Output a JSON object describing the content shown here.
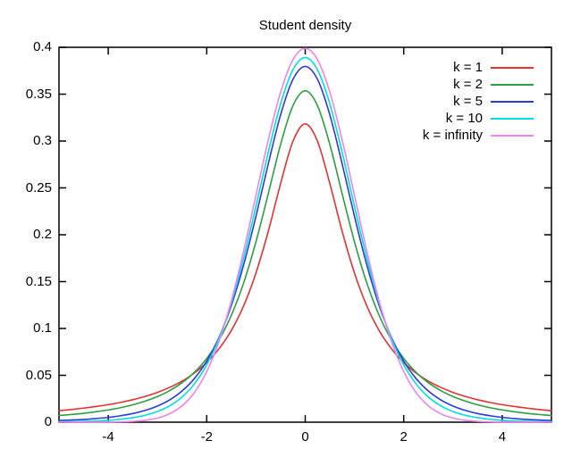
{
  "chart_data": {
    "type": "line",
    "title": "Student density",
    "xlabel": "",
    "ylabel": "",
    "xlim": [
      -5,
      5
    ],
    "ylim": [
      0,
      0.4
    ],
    "grid": false,
    "legend_position": "top-right-inside",
    "axis_color": "#000000",
    "background": "#ffffff",
    "x": [
      -5,
      -4.75,
      -4.5,
      -4.25,
      -4,
      -3.75,
      -3.5,
      -3.25,
      -3,
      -2.75,
      -2.5,
      -2.25,
      -2,
      -1.75,
      -1.5,
      -1.25,
      -1,
      -0.75,
      -0.5,
      -0.25,
      0,
      0.25,
      0.5,
      0.75,
      1,
      1.25,
      1.5,
      1.75,
      2,
      2.25,
      2.5,
      2.75,
      3,
      3.25,
      3.5,
      3.75,
      4,
      4.25,
      4.5,
      4.75,
      5
    ],
    "series": [
      {
        "name": "k = 1",
        "color": "#e03434",
        "values": [
          0.0122,
          0.0135,
          0.015,
          0.0167,
          0.0187,
          0.0211,
          0.024,
          0.0275,
          0.0318,
          0.0372,
          0.0439,
          0.0525,
          0.0637,
          0.0784,
          0.0979,
          0.1242,
          0.1592,
          0.2037,
          0.2546,
          0.2996,
          0.3183,
          0.2996,
          0.2546,
          0.2037,
          0.1592,
          0.1242,
          0.0979,
          0.0784,
          0.0637,
          0.0525,
          0.0439,
          0.0372,
          0.0318,
          0.0275,
          0.024,
          0.0211,
          0.0187,
          0.0167,
          0.015,
          0.0135,
          0.0122
        ]
      },
      {
        "name": "k = 2",
        "color": "#2e9e44",
        "values": [
          0.0071,
          0.0082,
          0.0095,
          0.0111,
          0.0131,
          0.0155,
          0.0186,
          0.0225,
          0.0274,
          0.0338,
          0.0422,
          0.0533,
          0.068,
          0.0878,
          0.1141,
          0.1487,
          0.1925,
          0.2438,
          0.2963,
          0.3376,
          0.3536,
          0.3376,
          0.2963,
          0.2438,
          0.1925,
          0.1487,
          0.1141,
          0.0878,
          0.068,
          0.0533,
          0.0422,
          0.0338,
          0.0274,
          0.0225,
          0.0186,
          0.0155,
          0.0131,
          0.0111,
          0.0095,
          0.0082,
          0.0071
        ]
      },
      {
        "name": "k = 5",
        "color": "#2d3bd6",
        "values": [
          0.0018,
          0.0023,
          0.0029,
          0.0039,
          0.0051,
          0.0069,
          0.0092,
          0.0126,
          0.0173,
          0.0239,
          0.0333,
          0.0466,
          0.0651,
          0.0905,
          0.1245,
          0.1679,
          0.2197,
          0.2757,
          0.3279,
          0.3657,
          0.3796,
          0.3657,
          0.3279,
          0.2757,
          0.2197,
          0.1679,
          0.1245,
          0.0905,
          0.0651,
          0.0466,
          0.0333,
          0.0239,
          0.0173,
          0.0126,
          0.0092,
          0.0069,
          0.0051,
          0.0039,
          0.0029,
          0.0023,
          0.0018
        ]
      },
      {
        "name": "k = 10",
        "color": "#00dede",
        "values": [
          0.0004,
          0.0006,
          0.0009,
          0.0013,
          0.002,
          0.0031,
          0.0048,
          0.0074,
          0.0114,
          0.0176,
          0.0269,
          0.0409,
          0.0612,
          0.0895,
          0.1274,
          0.1751,
          0.2304,
          0.288,
          0.3397,
          0.376,
          0.3891,
          0.376,
          0.3397,
          0.288,
          0.2304,
          0.1751,
          0.1274,
          0.0895,
          0.0612,
          0.0409,
          0.0269,
          0.0176,
          0.0114,
          0.0074,
          0.0048,
          0.0031,
          0.002,
          0.0013,
          0.0009,
          0.0006,
          0.0004
        ]
      },
      {
        "name": "k = infinity",
        "color": "#ee82ee",
        "values": [
          0,
          0,
          0,
          0,
          0.0001,
          0.0004,
          0.0009,
          0.002,
          0.0044,
          0.0091,
          0.0175,
          0.0317,
          0.054,
          0.0863,
          0.1295,
          0.1826,
          0.242,
          0.3011,
          0.3521,
          0.3867,
          0.3989,
          0.3867,
          0.3521,
          0.3011,
          0.242,
          0.1826,
          0.1295,
          0.0863,
          0.054,
          0.0317,
          0.0175,
          0.0091,
          0.0044,
          0.002,
          0.0009,
          0.0004,
          0.0001,
          0,
          0,
          0,
          0
        ]
      }
    ],
    "xticks": {
      "values": [
        -4,
        -2,
        0,
        2,
        4
      ],
      "labels": [
        "-4",
        "-2",
        "0",
        "2",
        "4"
      ]
    },
    "yticks": {
      "values": [
        0,
        0.05,
        0.1,
        0.15,
        0.2,
        0.25,
        0.3,
        0.35,
        0.4
      ],
      "labels": [
        "0",
        "0.05",
        "0.1",
        "0.15",
        "0.2",
        "0.25",
        "0.3",
        "0.35",
        "0.4"
      ]
    }
  }
}
